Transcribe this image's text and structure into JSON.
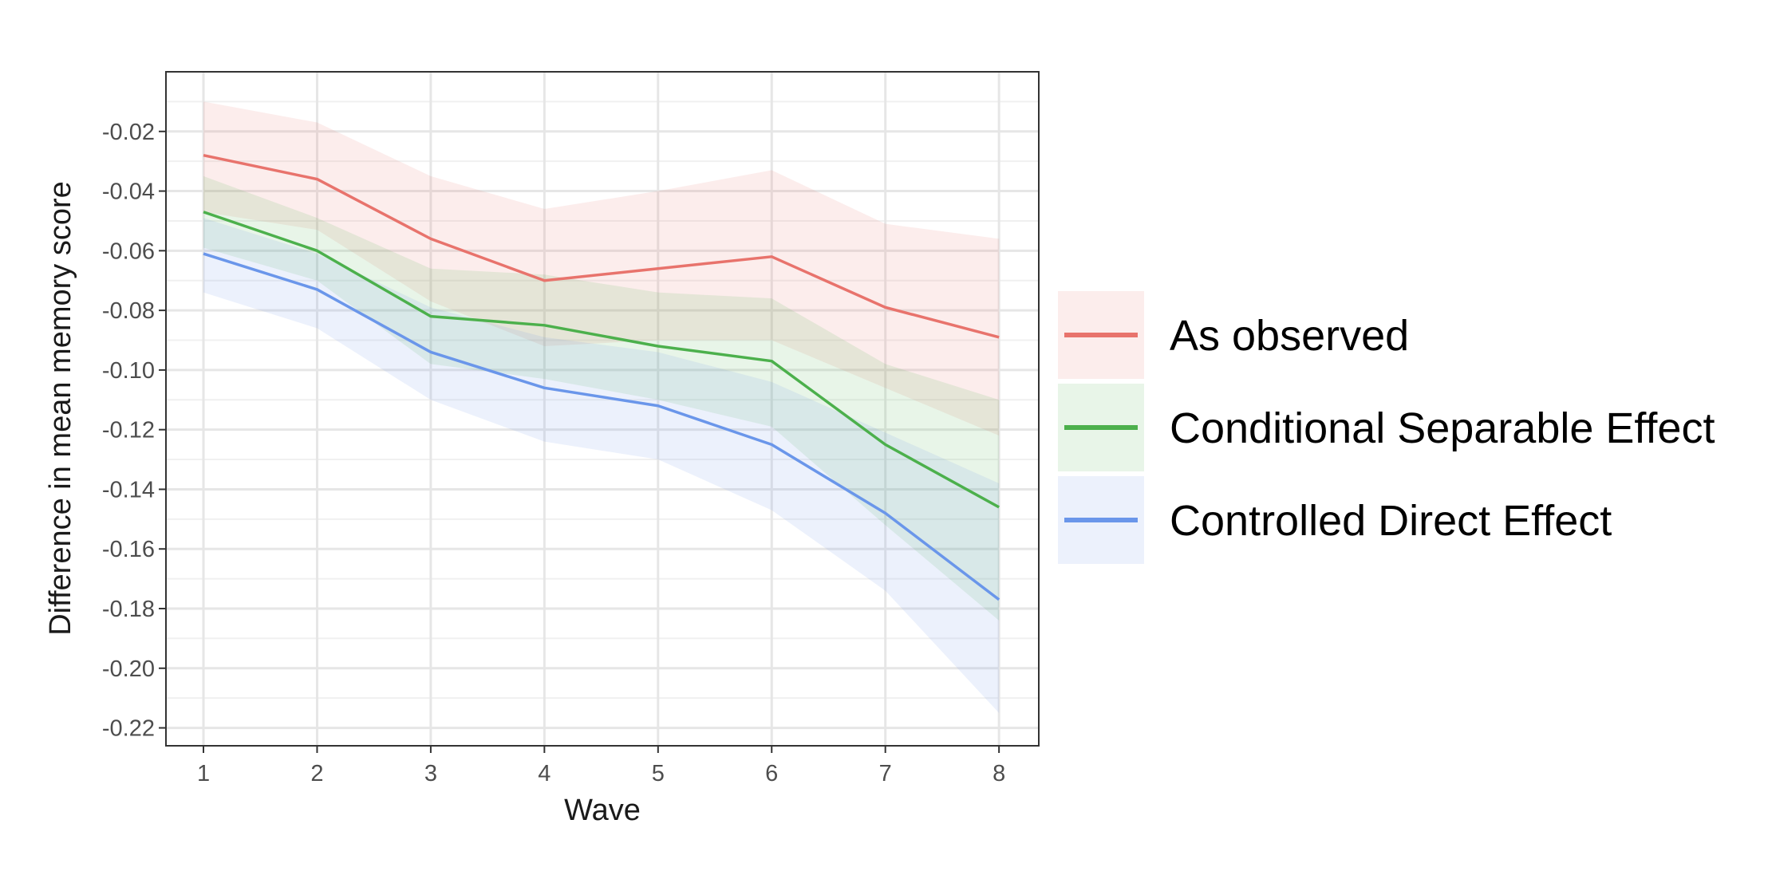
{
  "chart_data": {
    "type": "line",
    "xlabel": "Wave",
    "ylabel": "Difference in mean memory score",
    "x": [
      1,
      2,
      3,
      4,
      5,
      6,
      7,
      8
    ],
    "xticks": [
      "1",
      "2",
      "3",
      "4",
      "5",
      "6",
      "7",
      "8"
    ],
    "yticks": [
      -0.02,
      -0.04,
      -0.06,
      -0.08,
      -0.1,
      -0.12,
      -0.14,
      -0.16,
      -0.18,
      -0.2,
      -0.22
    ],
    "ytick_labels": [
      "-0.02",
      "-0.04",
      "-0.06",
      "-0.08",
      "-0.10",
      "-0.12",
      "-0.14",
      "-0.16",
      "-0.18",
      "-0.20",
      "-0.22"
    ],
    "xlim": [
      0.67,
      8.35
    ],
    "ylim": [
      -0.226,
      0.0
    ],
    "grid": true,
    "legend_position": "right",
    "series": [
      {
        "name": "As observed",
        "color": "#E8736C",
        "values": [
          -0.028,
          -0.036,
          -0.056,
          -0.07,
          -0.066,
          -0.062,
          -0.079,
          -0.089
        ],
        "lower": [
          -0.047,
          -0.053,
          -0.077,
          -0.092,
          -0.09,
          -0.09,
          -0.106,
          -0.122
        ],
        "upper": [
          -0.01,
          -0.017,
          -0.035,
          -0.046,
          -0.04,
          -0.033,
          -0.051,
          -0.056
        ]
      },
      {
        "name": "Conditional Separable Effect",
        "color": "#4CB04C",
        "values": [
          -0.047,
          -0.06,
          -0.082,
          -0.085,
          -0.092,
          -0.097,
          -0.125,
          -0.146
        ],
        "lower": [
          -0.059,
          -0.07,
          -0.098,
          -0.103,
          -0.11,
          -0.119,
          -0.152,
          -0.184
        ],
        "upper": [
          -0.035,
          -0.049,
          -0.066,
          -0.068,
          -0.074,
          -0.076,
          -0.098,
          -0.11
        ]
      },
      {
        "name": "Controlled Direct Effect",
        "color": "#6A96EA",
        "values": [
          -0.061,
          -0.073,
          -0.094,
          -0.106,
          -0.112,
          -0.125,
          -0.148,
          -0.177
        ],
        "lower": [
          -0.074,
          -0.086,
          -0.11,
          -0.124,
          -0.13,
          -0.147,
          -0.174,
          -0.215
        ],
        "upper": [
          -0.049,
          -0.061,
          -0.079,
          -0.089,
          -0.094,
          -0.104,
          -0.121,
          -0.138
        ]
      }
    ]
  }
}
